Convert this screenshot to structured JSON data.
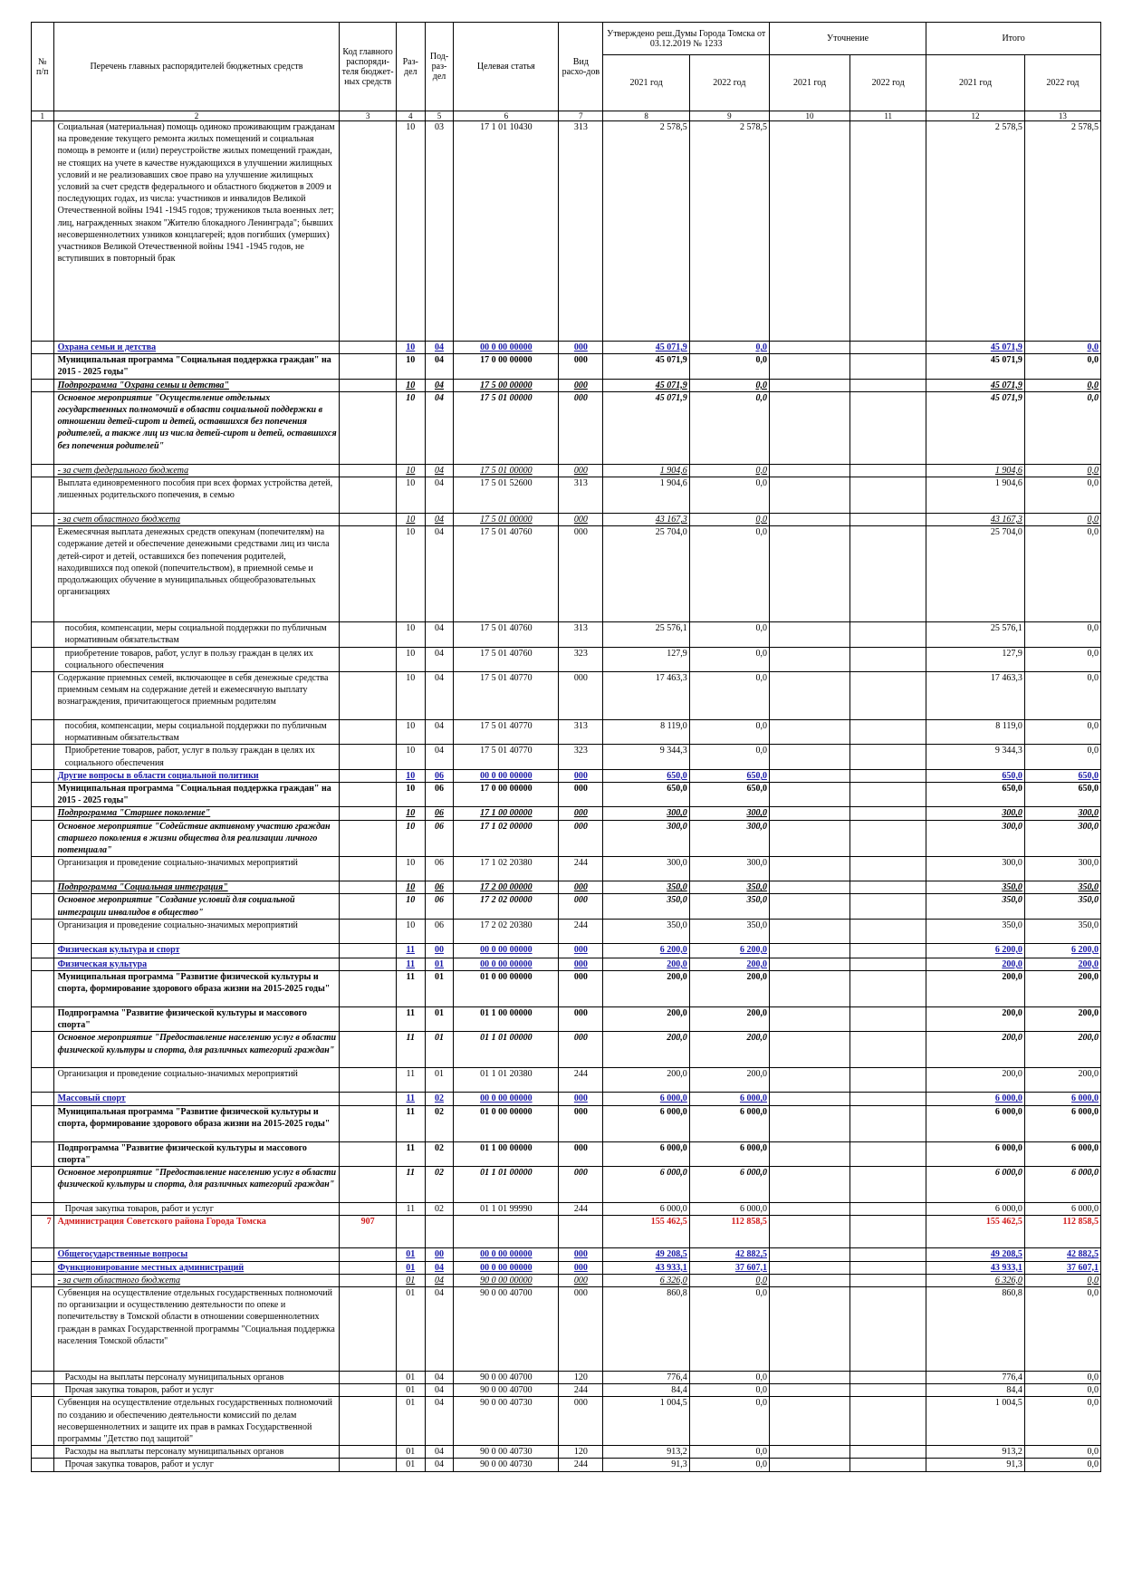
{
  "header": {
    "col1": "№ п/п",
    "col2": "Перечень главных распорядителей бюджетных средств",
    "col3": "Код главного распоряди-теля бюджет-ных средств",
    "col4": "Раз-дел",
    "col5": "Под-раз-дел",
    "col6": "Целевая статья",
    "col7": "Вид расхо-дов",
    "approved": "Утверждено реш.Думы Города Томска от 03.12.2019 № 1233",
    "clarify": "Уточнение",
    "total": "Итого",
    "y2021": "2021 год",
    "y2022": "2022 год"
  },
  "col_numbers": [
    "1",
    "2",
    "3",
    "4",
    "5",
    "6",
    "7",
    "8",
    "9",
    "10",
    "11",
    "12",
    "13"
  ],
  "rows": [
    {
      "type": "item",
      "h": 243,
      "c1": "",
      "c2": "Социальная (материальная) помощь одиноко проживающим гражданам на проведение текущего ремонта жилых помещений и социальная помощь в ремонте и (или) переустройстве жилых помещений граждан, не стоящих на учете в качестве нуждающихся в улучшении жилищных условий и не реализовавших свое право на улучшение жилищных условий за счет средств федерального и областного бюджетов в 2009 и последующих годах, из числа: участников и инвалидов Великой Отечественной войны 1941 -1945 годов; тружеников тыла военных лет; лиц, награжденных знаком \"Жителю блокадного Ленинграда\"; бывших несовершеннолетних узников концлагерей; вдов погибших (умерших) участников Великой Отечественной войны 1941 -1945 годов, не вступивших в повторный брак",
      "c3": "",
      "c4": "10",
      "c5": "03",
      "c6": "17 1 01 10430",
      "c7": "313",
      "c8": "2 578,5",
      "c9": "2 578,5",
      "c10": "",
      "c11": "",
      "c12": "2 578,5",
      "c13": "2 578,5"
    },
    {
      "type": "sec",
      "h": 14,
      "c1": "",
      "c2": "Охрана семьи и детства",
      "c3": "",
      "c4": "10",
      "c5": "04",
      "c6": "00 0 00 00000",
      "c7": "000",
      "c8": "45 071,9",
      "c9": "0,0",
      "c10": "",
      "c11": "",
      "c12": "45 071,9",
      "c13": "0,0"
    },
    {
      "type": "prog",
      "h": 27,
      "c1": "",
      "c2": "Муниципальная программа \"Социальная поддержка граждан\" на 2015 - 2025 годы\"",
      "c3": "",
      "c4": "10",
      "c5": "04",
      "c6": "17 0 00 00000",
      "c7": "000",
      "c8": "45 071,9",
      "c9": "0,0",
      "c10": "",
      "c11": "",
      "c12": "45 071,9",
      "c13": "0,0"
    },
    {
      "type": "sub",
      "h": 14,
      "c1": "",
      "c2": "Подпрограмма \"Охрана семьи и детства\"",
      "c3": "",
      "c4": "10",
      "c5": "04",
      "c6": "17 5 00 00000",
      "c7": "000",
      "c8": "45 071,9",
      "c9": "0,0",
      "c10": "",
      "c11": "",
      "c12": "45 071,9",
      "c13": "0,0"
    },
    {
      "type": "act",
      "h": 80,
      "c1": "",
      "c2": "Основное мероприятие \"Осуществление отдельных государственных полномочий в области социальной поддержки в отношении детей-сирот и детей, оставшихся без попечения родителей, а также лиц из числа детей-сирот и детей, оставшихся без попечения родителей\"",
      "c3": "",
      "c4": "10",
      "c5": "04",
      "c6": "17 5 01 00000",
      "c7": "000",
      "c8": "45 071,9",
      "c9": "0,0",
      "c10": "",
      "c11": "",
      "c12": "45 071,9",
      "c13": "0,0"
    },
    {
      "type": "fund",
      "h": 14,
      "c1": "",
      "c2": "- за счет федерального бюджета",
      "c3": "",
      "c4": "10",
      "c5": "04",
      "c6": "17 5 01 00000",
      "c7": "000",
      "c8": "1 904,6",
      "c9": "0,0",
      "c10": "",
      "c11": "",
      "c12": "1 904,6",
      "c13": "0,0"
    },
    {
      "type": "item",
      "h": 40,
      "c1": "",
      "c2": "Выплата единовременного пособия при всех формах устройства детей, лишенных родительского попечения, в семью",
      "c3": "",
      "c4": "10",
      "c5": "04",
      "c6": "17 5 01 52600",
      "c7": "313",
      "c8": "1 904,6",
      "c9": "0,0",
      "c10": "",
      "c11": "",
      "c12": "1 904,6",
      "c13": "0,0"
    },
    {
      "type": "fund",
      "h": 14,
      "c1": "",
      "c2": "- за счет областного бюджета",
      "c3": "",
      "c4": "10",
      "c5": "04",
      "c6": "17 5 01 00000",
      "c7": "000",
      "c8": "43 167,3",
      "c9": "0,0",
      "c10": "",
      "c11": "",
      "c12": "43 167,3",
      "c13": "0,0"
    },
    {
      "type": "item",
      "h": 106,
      "c1": "",
      "c2": "Ежемесячная выплата денежных средств опекунам (попечителям) на содержание детей и обеспечение денежными средствами лиц из числа детей-сирот и детей, оставшихся без попечения родителей, находившихся под опекой (попечительством), в приемной семье и продолжающих обучение в муниципальных общеобразовательных организациях",
      "c3": "",
      "c4": "10",
      "c5": "04",
      "c6": "17 5 01 40760",
      "c7": "000",
      "c8": "25 704,0",
      "c9": "0,0",
      "c10": "",
      "c11": "",
      "c12": "25 704,0",
      "c13": "0,0"
    },
    {
      "type": "item2",
      "h": 27,
      "c1": "",
      "c2": "пособия, компенсации, меры социальной поддержки по публичным нормативным обязательствам",
      "c3": "",
      "c4": "10",
      "c5": "04",
      "c6": "17 5 01 40760",
      "c7": "313",
      "c8": "25 576,1",
      "c9": "0,0",
      "c10": "",
      "c11": "",
      "c12": "25 576,1",
      "c13": "0,0"
    },
    {
      "type": "item2",
      "h": 27,
      "c1": "",
      "c2": "приобретение товаров, работ, услуг в пользу граждан в целях их социального обеспечения",
      "c3": "",
      "c4": "10",
      "c5": "04",
      "c6": "17 5 01 40760",
      "c7": "323",
      "c8": "127,9",
      "c9": "0,0",
      "c10": "",
      "c11": "",
      "c12": "127,9",
      "c13": "0,0"
    },
    {
      "type": "item",
      "h": 53,
      "c1": "",
      "c2": "Содержание приемных семей, включающее в себя денежные средства приемным семьям на содержание детей и ежемесячную выплату вознаграждения, причитающегося приемным родителям",
      "c3": "",
      "c4": "10",
      "c5": "04",
      "c6": "17 5 01 40770",
      "c7": "000",
      "c8": "17 463,3",
      "c9": "0,0",
      "c10": "",
      "c11": "",
      "c12": "17 463,3",
      "c13": "0,0"
    },
    {
      "type": "item2",
      "h": 27,
      "c1": "",
      "c2": "пособия, компенсации, меры социальной поддержки по публичным нормативным обязательствам",
      "c3": "",
      "c4": "10",
      "c5": "04",
      "c6": "17 5 01 40770",
      "c7": "313",
      "c8": "8 119,0",
      "c9": "0,0",
      "c10": "",
      "c11": "",
      "c12": "8 119,0",
      "c13": "0,0"
    },
    {
      "type": "item2",
      "h": 27,
      "c1": "",
      "c2": "Приобретение товаров, работ, услуг в пользу граждан в целях их социального обеспечения",
      "c3": "",
      "c4": "10",
      "c5": "04",
      "c6": "17 5 01 40770",
      "c7": "323",
      "c8": "9 344,3",
      "c9": "0,0",
      "c10": "",
      "c11": "",
      "c12": "9 344,3",
      "c13": "0,0"
    },
    {
      "type": "sec",
      "h": 14,
      "c1": "",
      "c2": "Другие вопросы в области социальной политики",
      "c3": "",
      "c4": "10",
      "c5": "06",
      "c6": "00 0 00 00000",
      "c7": "000",
      "c8": "650,0",
      "c9": "650,0",
      "c10": "",
      "c11": "",
      "c12": "650,0",
      "c13": "650,0"
    },
    {
      "type": "prog",
      "h": 27,
      "c1": "",
      "c2": "Муниципальная программа \"Социальная поддержка граждан\" на 2015 - 2025 годы\"",
      "c3": "",
      "c4": "10",
      "c5": "06",
      "c6": "17 0 00 00000",
      "c7": "000",
      "c8": "650,0",
      "c9": "650,0",
      "c10": "",
      "c11": "",
      "c12": "650,0",
      "c13": "650,0"
    },
    {
      "type": "sub",
      "h": 14,
      "c1": "",
      "c2": "Подпрограмма \"Старшее поколение\"",
      "c3": "",
      "c4": "10",
      "c5": "06",
      "c6": "17 1 00 00000",
      "c7": "000",
      "c8": "300,0",
      "c9": "300,0",
      "c10": "",
      "c11": "",
      "c12": "300,0",
      "c13": "300,0"
    },
    {
      "type": "act",
      "h": 40,
      "c1": "",
      "c2": "Основное мероприятие \"Содействие активному участию граждан старшего поколения в жизни общества для реализации личного потенциала\"",
      "c3": "",
      "c4": "10",
      "c5": "06",
      "c6": "17 1 02 00000",
      "c7": "000",
      "c8": "300,0",
      "c9": "300,0",
      "c10": "",
      "c11": "",
      "c12": "300,0",
      "c13": "300,0"
    },
    {
      "type": "item",
      "h": 27,
      "c1": "",
      "c2": "Организация и проведение социально-значимых мероприятий",
      "c3": "",
      "c4": "10",
      "c5": "06",
      "c6": "17 1 02 20380",
      "c7": "244",
      "c8": "300,0",
      "c9": "300,0",
      "c10": "",
      "c11": "",
      "c12": "300,0",
      "c13": "300,0"
    },
    {
      "type": "sub",
      "h": 14,
      "c1": "",
      "c2": "Подпрограмма \"Социальная интеграция\"",
      "c3": "",
      "c4": "10",
      "c5": "06",
      "c6": "17 2 00 00000",
      "c7": "000",
      "c8": "350,0",
      "c9": "350,0",
      "c10": "",
      "c11": "",
      "c12": "350,0",
      "c13": "350,0"
    },
    {
      "type": "act",
      "h": 27,
      "c1": "",
      "c2": "Основное мероприятие \"Создание условий для социальной интеграции инвалидов в общество\"",
      "c3": "",
      "c4": "10",
      "c5": "06",
      "c6": "17 2 02 00000",
      "c7": "000",
      "c8": "350,0",
      "c9": "350,0",
      "c10": "",
      "c11": "",
      "c12": "350,0",
      "c13": "350,0"
    },
    {
      "type": "item",
      "h": 27,
      "c1": "",
      "c2": "Организация и проведение социально-значимых мероприятий",
      "c3": "",
      "c4": "10",
      "c5": "06",
      "c6": "17 2 02 20380",
      "c7": "244",
      "c8": "350,0",
      "c9": "350,0",
      "c10": "",
      "c11": "",
      "c12": "350,0",
      "c13": "350,0"
    },
    {
      "type": "sec",
      "h": 16,
      "c1": "",
      "c2": "Физическая культура и спорт",
      "c3": "",
      "c4": "11",
      "c5": "00",
      "c6": "00 0 00 00000",
      "c7": "000",
      "c8": "6 200,0",
      "c9": "6 200,0",
      "c10": "",
      "c11": "",
      "c12": "6 200,0",
      "c13": "6 200,0"
    },
    {
      "type": "sec",
      "h": 14,
      "c1": "",
      "c2": "Физическая культура",
      "c3": "",
      "c4": "11",
      "c5": "01",
      "c6": "00 0 00 00000",
      "c7": "000",
      "c8": "200,0",
      "c9": "200,0",
      "c10": "",
      "c11": "",
      "c12": "200,0",
      "c13": "200,0"
    },
    {
      "type": "prog",
      "h": 40,
      "c1": "",
      "c2": "Муниципальная программа \"Развитие физической культуры и спорта, формирование здорового образа жизни на 2015-2025 годы\"",
      "c3": "",
      "c4": "11",
      "c5": "01",
      "c6": "01 0 00 00000",
      "c7": "000",
      "c8": "200,0",
      "c9": "200,0",
      "c10": "",
      "c11": "",
      "c12": "200,0",
      "c13": "200,0"
    },
    {
      "type": "prog",
      "h": 27,
      "c1": "",
      "c2": "Подпрограмма \"Развитие физической культуры и массового спорта\"",
      "c3": "",
      "c4": "11",
      "c5": "01",
      "c6": "01 1 00 00000",
      "c7": "000",
      "c8": "200,0",
      "c9": "200,0",
      "c10": "",
      "c11": "",
      "c12": "200,0",
      "c13": "200,0"
    },
    {
      "type": "act",
      "h": 40,
      "c1": "",
      "c2": "Основное мероприятие \"Предоставление населению услуг в области физической культуры и спорта, для различных категорий граждан\"",
      "c3": "",
      "c4": "11",
      "c5": "01",
      "c6": "01 1 01 00000",
      "c7": "000",
      "c8": "200,0",
      "c9": "200,0",
      "c10": "",
      "c11": "",
      "c12": "200,0",
      "c13": "200,0"
    },
    {
      "type": "item",
      "h": 27,
      "c1": "",
      "c2": "Организация и проведение социально-значимых мероприятий",
      "c3": "",
      "c4": "11",
      "c5": "01",
      "c6": "01 1 01 20380",
      "c7": "244",
      "c8": "200,0",
      "c9": "200,0",
      "c10": "",
      "c11": "",
      "c12": "200,0",
      "c13": "200,0"
    },
    {
      "type": "sec",
      "h": 14,
      "c1": "",
      "c2": "Массовый спорт",
      "c3": "",
      "c4": "11",
      "c5": "02",
      "c6": "00 0 00 00000",
      "c7": "000",
      "c8": "6 000,0",
      "c9": "6 000,0",
      "c10": "",
      "c11": "",
      "c12": "6 000,0",
      "c13": "6 000,0"
    },
    {
      "type": "prog",
      "h": 40,
      "c1": "",
      "c2": "Муниципальная программа \"Развитие физической культуры и спорта, формирование здорового образа жизни на 2015-2025 годы\"",
      "c3": "",
      "c4": "11",
      "c5": "02",
      "c6": "01 0 00 00000",
      "c7": "000",
      "c8": "6 000,0",
      "c9": "6 000,0",
      "c10": "",
      "c11": "",
      "c12": "6 000,0",
      "c13": "6 000,0"
    },
    {
      "type": "prog",
      "h": 27,
      "c1": "",
      "c2": "Подпрограмма \"Развитие физической культуры и массового спорта\"",
      "c3": "",
      "c4": "11",
      "c5": "02",
      "c6": "01 1 00 00000",
      "c7": "000",
      "c8": "6 000,0",
      "c9": "6 000,0",
      "c10": "",
      "c11": "",
      "c12": "6 000,0",
      "c13": "6 000,0"
    },
    {
      "type": "act",
      "h": 40,
      "c1": "",
      "c2": "Основное мероприятие \"Предоставление населению услуг в области физической культуры и спорта, для различных категорий граждан\"",
      "c3": "",
      "c4": "11",
      "c5": "02",
      "c6": "01 1 01 00000",
      "c7": "000",
      "c8": "6 000,0",
      "c9": "6 000,0",
      "c10": "",
      "c11": "",
      "c12": "6 000,0",
      "c13": "6 000,0"
    },
    {
      "type": "item2",
      "h": 14,
      "c1": "",
      "c2": "Прочая закупка товаров, работ и услуг",
      "c3": "",
      "c4": "11",
      "c5": "02",
      "c6": "01 1 01 99990",
      "c7": "244",
      "c8": "6 000,0",
      "c9": "6 000,0",
      "c10": "",
      "c11": "",
      "c12": "6 000,0",
      "c13": "6 000,0"
    },
    {
      "type": "admin",
      "h": 36,
      "c1": "7",
      "c2": "Администрация Советского района Города Томска",
      "c3": "907",
      "c4": "",
      "c5": "",
      "c6": "",
      "c7": "",
      "c8": "155 462,5",
      "c9": "112 858,5",
      "c10": "",
      "c11": "",
      "c12": "155 462,5",
      "c13": "112 858,5"
    },
    {
      "type": "sec",
      "h": 14,
      "c1": "",
      "c2": "Общегосударственные вопросы",
      "c3": "",
      "c4": "01",
      "c5": "00",
      "c6": "00 0 00 00000",
      "c7": "000",
      "c8": "49 208,5",
      "c9": "42 882,5",
      "c10": "",
      "c11": "",
      "c12": "49 208,5",
      "c13": "42 882,5"
    },
    {
      "type": "sec",
      "h": 14,
      "c1": "",
      "c2": "Функционирование местных администраций",
      "c3": "",
      "c4": "01",
      "c5": "04",
      "c6": "00 0 00 00000",
      "c7": "000",
      "c8": "43 933,1",
      "c9": "37 607,1",
      "c10": "",
      "c11": "",
      "c12": "43 933,1",
      "c13": "37 607,1"
    },
    {
      "type": "fund",
      "h": 14,
      "c1": "",
      "c2": "- за счет областного бюджета",
      "c3": "",
      "c4": "01",
      "c5": "04",
      "c6": "90 0 00 00000",
      "c7": "000",
      "c8": "6 326,0",
      "c9": "0,0",
      "c10": "",
      "c11": "",
      "c12": "6 326,0",
      "c13": "0,0"
    },
    {
      "type": "item",
      "h": 93,
      "c1": "",
      "c2": "Субвенция на осуществление отдельных государственных полномочий по организации и осуществлению деятельности по опеке и попечительству в Томской области в отношении совершеннолетних граждан в рамках Государственной программы \"Социальная поддержка населения Томской области\"",
      "c3": "",
      "c4": "01",
      "c5": "04",
      "c6": "90 0 00 40700",
      "c7": "000",
      "c8": "860,8",
      "c9": "0,0",
      "c10": "",
      "c11": "",
      "c12": "860,8",
      "c13": "0,0"
    },
    {
      "type": "item2",
      "h": 14,
      "c1": "",
      "c2": "Расходы на выплаты персоналу муниципальных органов",
      "c3": "",
      "c4": "01",
      "c5": "04",
      "c6": "90 0 00 40700",
      "c7": "120",
      "c8": "776,4",
      "c9": "0,0",
      "c10": "",
      "c11": "",
      "c12": "776,4",
      "c13": "0,0"
    },
    {
      "type": "item2",
      "h": 14,
      "c1": "",
      "c2": "Прочая закупка товаров, работ и услуг",
      "c3": "",
      "c4": "01",
      "c5": "04",
      "c6": "90 0 00 40700",
      "c7": "244",
      "c8": "84,4",
      "c9": "0,0",
      "c10": "",
      "c11": "",
      "c12": "84,4",
      "c13": "0,0"
    },
    {
      "type": "item",
      "h": 53,
      "c1": "",
      "c2": "Субвенция на осуществление отдельных государственных полномочий по созданию и обеспечению деятельности комиссий по делам несовершеннолетних и защите их прав в рамках Государственной программы \"Детство под защитой\"",
      "c3": "",
      "c4": "01",
      "c5": "04",
      "c6": "90 0 00 40730",
      "c7": "000",
      "c8": "1 004,5",
      "c9": "0,0",
      "c10": "",
      "c11": "",
      "c12": "1 004,5",
      "c13": "0,0"
    },
    {
      "type": "item2",
      "h": 14,
      "c1": "",
      "c2": "Расходы на выплаты персоналу муниципальных органов",
      "c3": "",
      "c4": "01",
      "c5": "04",
      "c6": "90 0 00 40730",
      "c7": "120",
      "c8": "913,2",
      "c9": "0,0",
      "c10": "",
      "c11": "",
      "c12": "913,2",
      "c13": "0,0"
    },
    {
      "type": "item2",
      "h": 14,
      "c1": "",
      "c2": "Прочая закупка товаров, работ и услуг",
      "c3": "",
      "c4": "01",
      "c5": "04",
      "c6": "90 0 00 40730",
      "c7": "244",
      "c8": "91,3",
      "c9": "0,0",
      "c10": "",
      "c11": "",
      "c12": "91,3",
      "c13": "0,0"
    }
  ]
}
